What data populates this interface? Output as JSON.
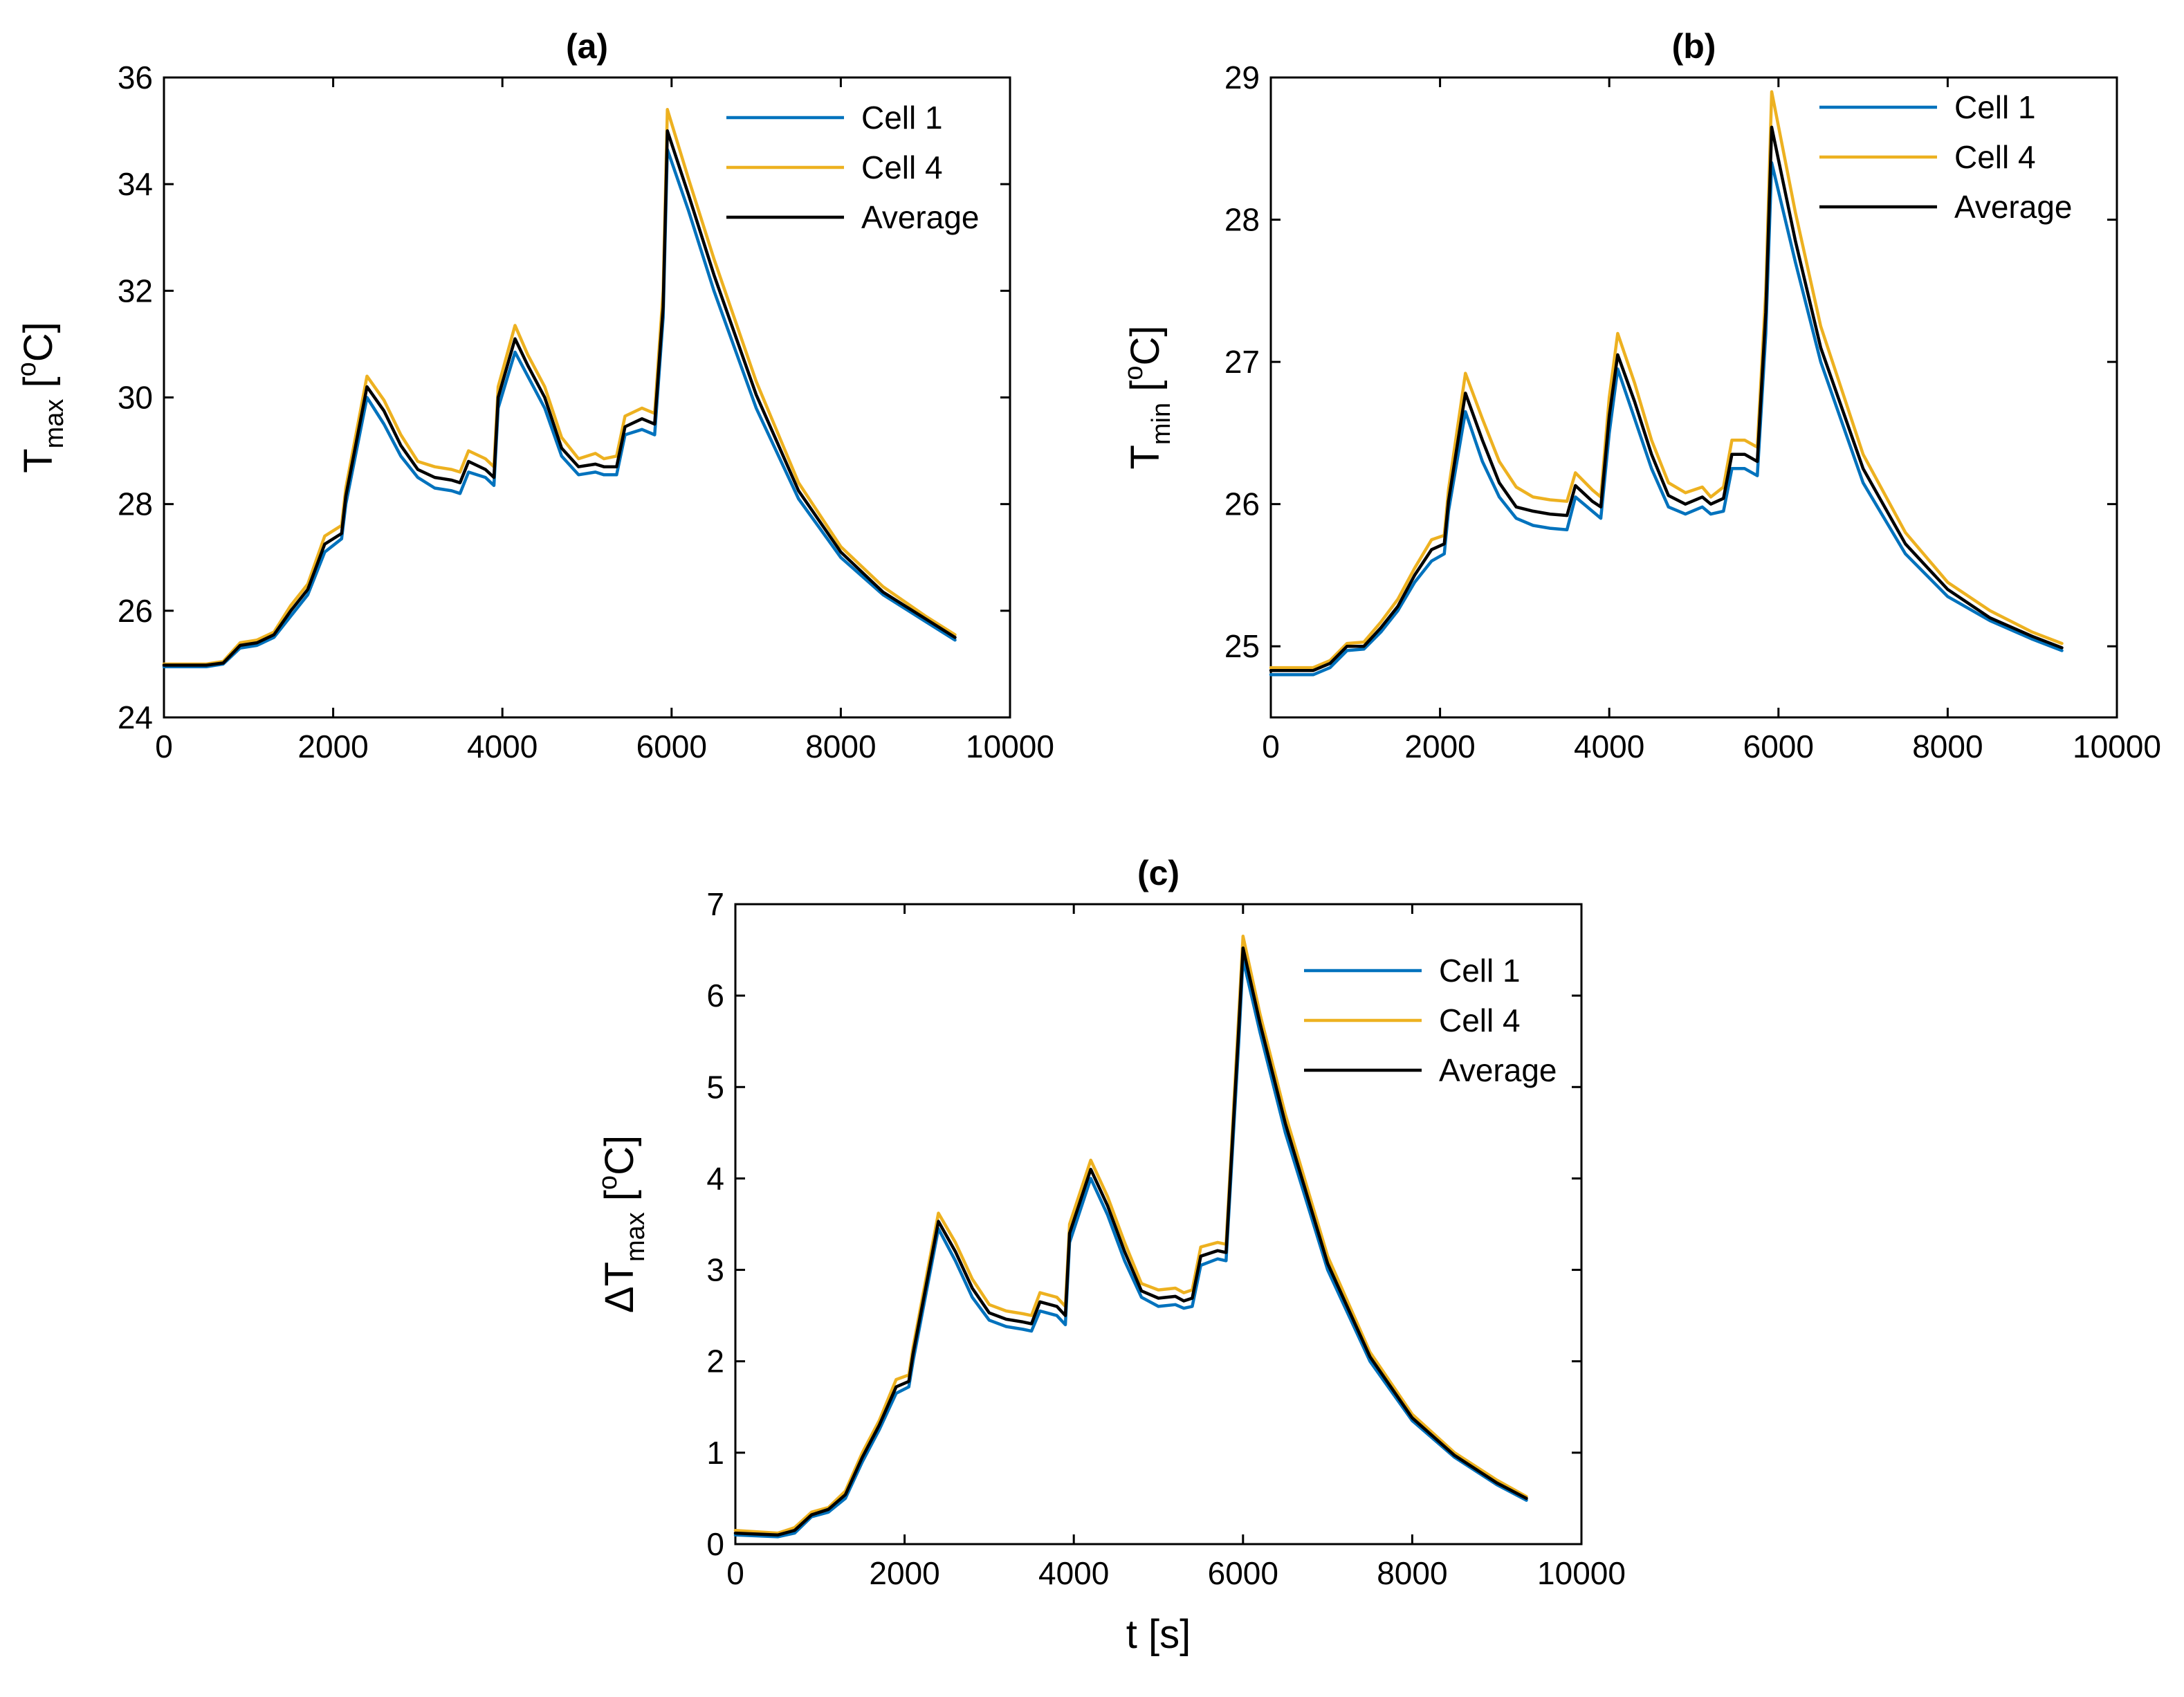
{
  "chart_data": [
    {
      "type": "line",
      "id": "a",
      "title": "(a)",
      "xlabel": "",
      "ylabel": {
        "main": "T",
        "sub": "max",
        "unit_open": " [",
        "unit_sup": "o",
        "unit_close": "C]"
      },
      "xlim": [
        0,
        10000
      ],
      "ylim": [
        24,
        36
      ],
      "xticks": [
        0,
        2000,
        4000,
        6000,
        8000,
        10000
      ],
      "yticks": [
        24,
        26,
        28,
        30,
        32,
        34,
        36
      ],
      "grid": false,
      "legend_position": "top-right",
      "series": [
        {
          "name": "Cell 1",
          "color": "#0072BD",
          "x": [
            0,
            500,
            700,
            900,
            1100,
            1300,
            1500,
            1700,
            1900,
            2100,
            2150,
            2400,
            2600,
            2800,
            3000,
            3200,
            3400,
            3500,
            3600,
            3800,
            3900,
            3950,
            4150,
            4300,
            4500,
            4700,
            4900,
            5100,
            5200,
            5350,
            5450,
            5650,
            5800,
            5900,
            5950,
            6200,
            6500,
            7000,
            7500,
            8000,
            8500,
            9000,
            9350
          ],
          "y": [
            24.95,
            24.95,
            25.0,
            25.3,
            25.35,
            25.5,
            25.9,
            26.3,
            27.1,
            27.35,
            28.0,
            30.0,
            29.5,
            28.9,
            28.5,
            28.3,
            28.25,
            28.2,
            28.6,
            28.5,
            28.35,
            29.8,
            30.85,
            30.4,
            29.8,
            28.9,
            28.55,
            28.6,
            28.55,
            28.55,
            29.3,
            29.4,
            29.3,
            31.5,
            34.65,
            33.5,
            32.0,
            29.8,
            28.1,
            27.0,
            26.3,
            25.8,
            25.45
          ]
        },
        {
          "name": "Cell 4",
          "color": "#EDB120",
          "x": [
            0,
            500,
            700,
            900,
            1100,
            1300,
            1500,
            1700,
            1900,
            2100,
            2150,
            2400,
            2600,
            2800,
            3000,
            3200,
            3400,
            3500,
            3600,
            3800,
            3900,
            3950,
            4150,
            4300,
            4500,
            4700,
            4900,
            5100,
            5200,
            5350,
            5450,
            5650,
            5800,
            5900,
            5950,
            6200,
            6500,
            7000,
            7500,
            8000,
            8500,
            9000,
            9350
          ],
          "y": [
            25.0,
            25.0,
            25.05,
            25.4,
            25.45,
            25.6,
            26.1,
            26.5,
            27.4,
            27.6,
            28.3,
            30.4,
            29.95,
            29.3,
            28.8,
            28.7,
            28.65,
            28.6,
            29.0,
            28.85,
            28.7,
            30.2,
            31.35,
            30.8,
            30.2,
            29.25,
            28.85,
            28.95,
            28.85,
            28.9,
            29.65,
            29.8,
            29.7,
            32.0,
            35.4,
            34.1,
            32.6,
            30.3,
            28.4,
            27.2,
            26.45,
            25.9,
            25.55
          ]
        },
        {
          "name": "Average",
          "color": "#000000",
          "x": [
            0,
            500,
            700,
            900,
            1100,
            1300,
            1500,
            1700,
            1900,
            2100,
            2150,
            2400,
            2600,
            2800,
            3000,
            3200,
            3400,
            3500,
            3600,
            3800,
            3900,
            3950,
            4150,
            4300,
            4500,
            4700,
            4900,
            5100,
            5200,
            5350,
            5450,
            5650,
            5800,
            5900,
            5950,
            6200,
            6500,
            7000,
            7500,
            8000,
            8500,
            9000,
            9350
          ],
          "y": [
            24.98,
            24.98,
            25.02,
            25.35,
            25.4,
            25.55,
            26.0,
            26.4,
            27.25,
            27.45,
            28.15,
            30.2,
            29.75,
            29.1,
            28.65,
            28.5,
            28.45,
            28.4,
            28.8,
            28.65,
            28.5,
            30.0,
            31.1,
            30.6,
            30.0,
            29.05,
            28.7,
            28.75,
            28.7,
            28.7,
            29.45,
            29.6,
            29.5,
            31.7,
            35.0,
            33.8,
            32.3,
            30.05,
            28.25,
            27.1,
            26.35,
            25.85,
            25.5
          ]
        }
      ]
    },
    {
      "type": "line",
      "id": "b",
      "title": "(b)",
      "xlabel": "",
      "ylabel": {
        "main": "T",
        "sub": "min",
        "unit_open": " [",
        "unit_sup": "o",
        "unit_close": "C]"
      },
      "xlim": [
        0,
        10000
      ],
      "ylim": [
        24.5,
        29
      ],
      "xticks": [
        0,
        2000,
        4000,
        6000,
        8000,
        10000
      ],
      "yticks": [
        25,
        26,
        27,
        28,
        29
      ],
      "grid": false,
      "legend_position": "top-right",
      "series": [
        {
          "name": "Cell 1",
          "color": "#0072BD",
          "x": [
            0,
            500,
            700,
            900,
            1100,
            1300,
            1500,
            1700,
            1900,
            2050,
            2100,
            2300,
            2500,
            2700,
            2900,
            3100,
            3300,
            3500,
            3600,
            3800,
            3900,
            4000,
            4100,
            4300,
            4500,
            4700,
            4900,
            5100,
            5200,
            5350,
            5450,
            5600,
            5750,
            5850,
            5920,
            6200,
            6500,
            7000,
            7500,
            8000,
            8500,
            9000,
            9350
          ],
          "y": [
            24.8,
            24.8,
            24.85,
            24.97,
            24.98,
            25.1,
            25.25,
            25.45,
            25.6,
            25.65,
            25.95,
            26.65,
            26.3,
            26.05,
            25.9,
            25.85,
            25.83,
            25.82,
            26.05,
            25.95,
            25.9,
            26.5,
            26.95,
            26.6,
            26.25,
            25.98,
            25.93,
            25.98,
            25.93,
            25.95,
            26.25,
            26.25,
            26.2,
            27.2,
            28.4,
            27.7,
            27.0,
            26.15,
            25.65,
            25.35,
            25.18,
            25.05,
            24.97
          ]
        },
        {
          "name": "Cell 4",
          "color": "#EDB120",
          "x": [
            0,
            500,
            700,
            900,
            1100,
            1300,
            1500,
            1700,
            1900,
            2050,
            2100,
            2300,
            2500,
            2700,
            2900,
            3100,
            3300,
            3500,
            3600,
            3800,
            3900,
            4000,
            4100,
            4300,
            4500,
            4700,
            4900,
            5100,
            5200,
            5350,
            5450,
            5600,
            5750,
            5850,
            5920,
            6200,
            6500,
            7000,
            7500,
            8000,
            8500,
            9000,
            9350
          ],
          "y": [
            24.85,
            24.85,
            24.9,
            25.02,
            25.03,
            25.17,
            25.33,
            25.55,
            25.75,
            25.78,
            26.1,
            26.92,
            26.6,
            26.3,
            26.12,
            26.05,
            26.03,
            26.02,
            26.22,
            26.1,
            26.05,
            26.75,
            27.2,
            26.85,
            26.45,
            26.15,
            26.08,
            26.12,
            26.05,
            26.12,
            26.45,
            26.45,
            26.4,
            27.5,
            28.9,
            28.05,
            27.25,
            26.35,
            25.8,
            25.45,
            25.25,
            25.1,
            25.02
          ]
        },
        {
          "name": "Average",
          "color": "#000000",
          "x": [
            0,
            500,
            700,
            900,
            1100,
            1300,
            1500,
            1700,
            1900,
            2050,
            2100,
            2300,
            2500,
            2700,
            2900,
            3100,
            3300,
            3500,
            3600,
            3800,
            3900,
            4000,
            4100,
            4300,
            4500,
            4700,
            4900,
            5100,
            5200,
            5350,
            5450,
            5600,
            5750,
            5850,
            5920,
            6200,
            6500,
            7000,
            7500,
            8000,
            8500,
            9000,
            9350
          ],
          "y": [
            24.83,
            24.83,
            24.88,
            25.0,
            25.0,
            25.13,
            25.28,
            25.5,
            25.68,
            25.72,
            26.02,
            26.78,
            26.45,
            26.15,
            25.98,
            25.95,
            25.93,
            25.92,
            26.13,
            26.02,
            25.98,
            26.62,
            27.05,
            26.72,
            26.35,
            26.06,
            26.0,
            26.05,
            26.0,
            26.04,
            26.35,
            26.35,
            26.3,
            27.35,
            28.65,
            27.85,
            27.1,
            26.25,
            25.72,
            25.4,
            25.2,
            25.07,
            24.99
          ]
        }
      ]
    },
    {
      "type": "line",
      "id": "c",
      "title": "(c)",
      "xlabel": "t [s]",
      "ylabel": {
        "main": "ΔT",
        "sub": "max",
        "unit_open": " [",
        "unit_sup": "o",
        "unit_close": "C]"
      },
      "xlim": [
        0,
        10000
      ],
      "ylim": [
        0,
        7
      ],
      "xticks": [
        0,
        2000,
        4000,
        6000,
        8000,
        10000
      ],
      "yticks": [
        0,
        1,
        2,
        3,
        4,
        5,
        6,
        7
      ],
      "grid": false,
      "legend_position": "top-right",
      "series": [
        {
          "name": "Cell 1",
          "color": "#0072BD",
          "x": [
            0,
            500,
            700,
            900,
            1100,
            1300,
            1500,
            1700,
            1900,
            2050,
            2100,
            2400,
            2600,
            2800,
            3000,
            3200,
            3400,
            3500,
            3600,
            3800,
            3900,
            3950,
            4200,
            4400,
            4600,
            4800,
            5000,
            5200,
            5300,
            5400,
            5500,
            5700,
            5800,
            5950,
            6000,
            6200,
            6500,
            7000,
            7500,
            8000,
            8500,
            9000,
            9350
          ],
          "y": [
            0.1,
            0.08,
            0.12,
            0.3,
            0.35,
            0.5,
            0.9,
            1.25,
            1.65,
            1.72,
            2.0,
            3.45,
            3.1,
            2.7,
            2.45,
            2.38,
            2.35,
            2.33,
            2.55,
            2.5,
            2.4,
            3.3,
            4.0,
            3.6,
            3.1,
            2.7,
            2.6,
            2.62,
            2.58,
            2.6,
            3.05,
            3.12,
            3.1,
            5.5,
            6.4,
            5.6,
            4.5,
            3.0,
            2.0,
            1.35,
            0.95,
            0.65,
            0.48
          ]
        },
        {
          "name": "Cell 4",
          "color": "#EDB120",
          "x": [
            0,
            500,
            700,
            900,
            1100,
            1300,
            1500,
            1700,
            1900,
            2050,
            2100,
            2400,
            2600,
            2800,
            3000,
            3200,
            3400,
            3500,
            3600,
            3800,
            3900,
            3950,
            4200,
            4400,
            4600,
            4800,
            5000,
            5200,
            5300,
            5400,
            5500,
            5700,
            5800,
            5950,
            6000,
            6200,
            6500,
            7000,
            7500,
            8000,
            8500,
            9000,
            9350
          ],
          "y": [
            0.15,
            0.12,
            0.18,
            0.35,
            0.4,
            0.58,
            1.0,
            1.35,
            1.8,
            1.85,
            2.15,
            3.62,
            3.3,
            2.9,
            2.62,
            2.55,
            2.52,
            2.5,
            2.75,
            2.7,
            2.6,
            3.5,
            4.2,
            3.8,
            3.3,
            2.85,
            2.78,
            2.8,
            2.75,
            2.78,
            3.25,
            3.3,
            3.28,
            5.8,
            6.65,
            5.8,
            4.7,
            3.15,
            2.1,
            1.42,
            1.0,
            0.7,
            0.52
          ]
        },
        {
          "name": "Average",
          "color": "#000000",
          "x": [
            0,
            500,
            700,
            900,
            1100,
            1300,
            1500,
            1700,
            1900,
            2050,
            2100,
            2400,
            2600,
            2800,
            3000,
            3200,
            3400,
            3500,
            3600,
            3800,
            3900,
            3950,
            4200,
            4400,
            4600,
            4800,
            5000,
            5200,
            5300,
            5400,
            5500,
            5700,
            5800,
            5950,
            6000,
            6200,
            6500,
            7000,
            7500,
            8000,
            8500,
            9000,
            9350
          ],
          "y": [
            0.12,
            0.1,
            0.15,
            0.32,
            0.38,
            0.54,
            0.95,
            1.3,
            1.72,
            1.78,
            2.08,
            3.53,
            3.2,
            2.8,
            2.53,
            2.46,
            2.43,
            2.41,
            2.65,
            2.6,
            2.5,
            3.4,
            4.1,
            3.7,
            3.2,
            2.77,
            2.69,
            2.71,
            2.66,
            2.69,
            3.15,
            3.21,
            3.19,
            5.65,
            6.52,
            5.7,
            4.6,
            3.07,
            2.05,
            1.38,
            0.97,
            0.67,
            0.5
          ]
        }
      ]
    }
  ]
}
